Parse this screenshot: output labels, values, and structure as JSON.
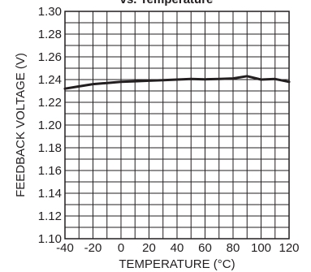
{
  "chart_data": {
    "type": "line",
    "title": "vs. Temperature",
    "xlabel": "TEMPERATURE (°C)",
    "ylabel": "FEEDBACK VOLTAGE (V)",
    "xlim": [
      -40,
      120
    ],
    "ylim": [
      1.1,
      1.3
    ],
    "x_ticks": [
      -40,
      -20,
      0,
      20,
      40,
      60,
      80,
      100,
      120
    ],
    "x_tick_labels": [
      "-40",
      "-20",
      "0",
      "20",
      "40",
      "60",
      "80",
      "100",
      "120"
    ],
    "y_ticks": [
      1.1,
      1.12,
      1.14,
      1.16,
      1.18,
      1.2,
      1.22,
      1.24,
      1.26,
      1.28,
      1.3
    ],
    "y_tick_labels": [
      "1.10",
      "1.12",
      "1.14",
      "1.16",
      "1.18",
      "1.20",
      "1.22",
      "1.24",
      "1.26",
      "1.28",
      "1.30"
    ],
    "grid": true,
    "series": [
      {
        "x": [
          -40,
          -30,
          -20,
          -10,
          0,
          10,
          20,
          30,
          40,
          50,
          60,
          70,
          80,
          90,
          100,
          110,
          120
        ],
        "values": [
          1.232,
          1.234,
          1.236,
          1.237,
          1.238,
          1.2385,
          1.239,
          1.2395,
          1.24,
          1.2405,
          1.2402,
          1.2405,
          1.241,
          1.243,
          1.24,
          1.2405,
          1.238
        ]
      }
    ]
  }
}
